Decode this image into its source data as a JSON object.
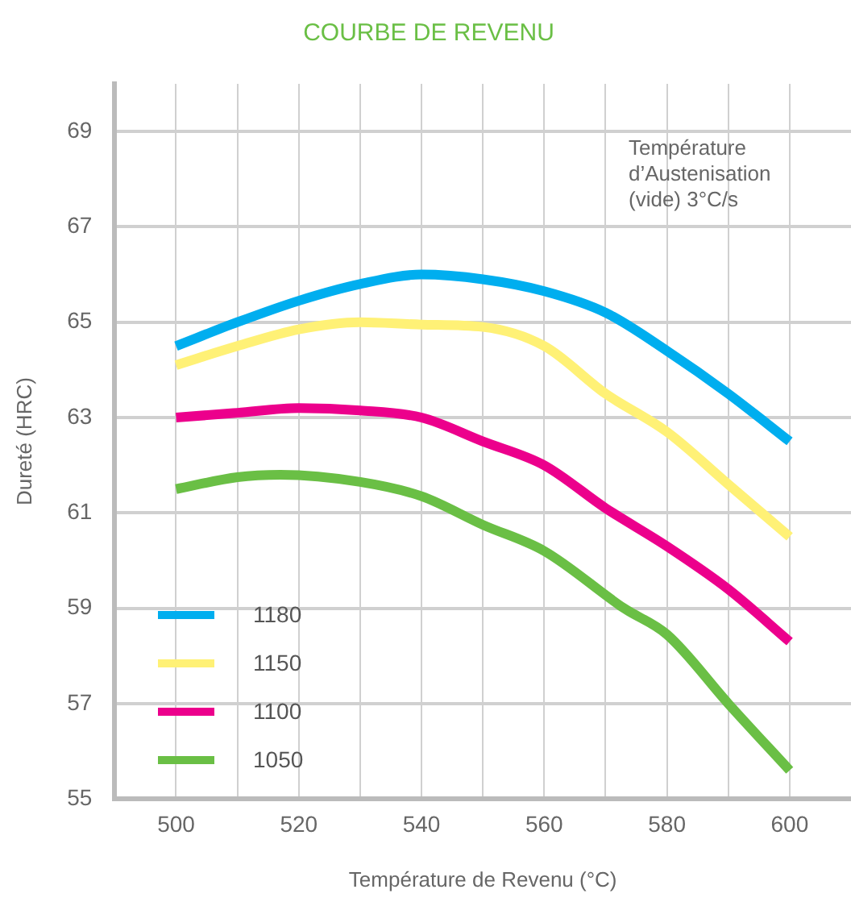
{
  "chart_data": {
    "type": "line",
    "title": "COURBE DE REVENU",
    "xlabel": "Température de Revenu (°C)",
    "ylabel": "Dureté (HRC)",
    "annotations": [
      "Température\nd’Austenisation\n(vide) 3°C/s"
    ],
    "xlim": [
      490,
      610
    ],
    "xticks": [
      500,
      {
        "value": 510,
        "label": null
      },
      520,
      {
        "value": 530,
        "label": null
      },
      540,
      {
        "value": 550,
        "label": null
      },
      560,
      {
        "value": 570,
        "label": null
      },
      580,
      {
        "value": 590,
        "label": null
      },
      600
    ],
    "ylim": [
      55,
      70
    ],
    "yticks": [
      55,
      57,
      59,
      61,
      63,
      65,
      67,
      69
    ],
    "grid": true,
    "legend": "bottom left",
    "marker": "none",
    "line_style": "solid",
    "series": [
      {
        "name": "1180",
        "color": "#00aeef",
        "x": [
          500,
          510,
          520,
          530,
          540,
          550,
          560,
          570,
          580,
          590,
          600
        ],
        "values": [
          64.5,
          65.0,
          65.45,
          65.8,
          66.0,
          65.9,
          65.65,
          65.2,
          64.4,
          63.5,
          62.5
        ]
      },
      {
        "name": "1150",
        "color": "#fff176",
        "x": [
          500,
          510,
          520,
          530,
          540,
          550,
          560,
          570,
          580,
          590,
          600
        ],
        "values": [
          64.1,
          64.5,
          64.85,
          65.0,
          64.95,
          64.9,
          64.5,
          63.5,
          62.7,
          61.6,
          60.5
        ]
      },
      {
        "name": "1100",
        "color": "#ec008c",
        "x": [
          500,
          510,
          520,
          530,
          540,
          550,
          560,
          570,
          580,
          590,
          600
        ],
        "values": [
          63.0,
          63.1,
          63.2,
          63.15,
          63.0,
          62.5,
          62.0,
          61.1,
          60.3,
          59.4,
          58.3
        ]
      },
      {
        "name": "1050",
        "color": "#6abf45",
        "x": [
          500,
          510,
          517,
          530,
          540,
          550,
          560,
          573,
          580,
          590,
          600
        ],
        "values": [
          61.5,
          61.75,
          61.8,
          61.65,
          61.35,
          60.75,
          60.2,
          59.0,
          58.45,
          57.0,
          55.6
        ]
      }
    ]
  }
}
